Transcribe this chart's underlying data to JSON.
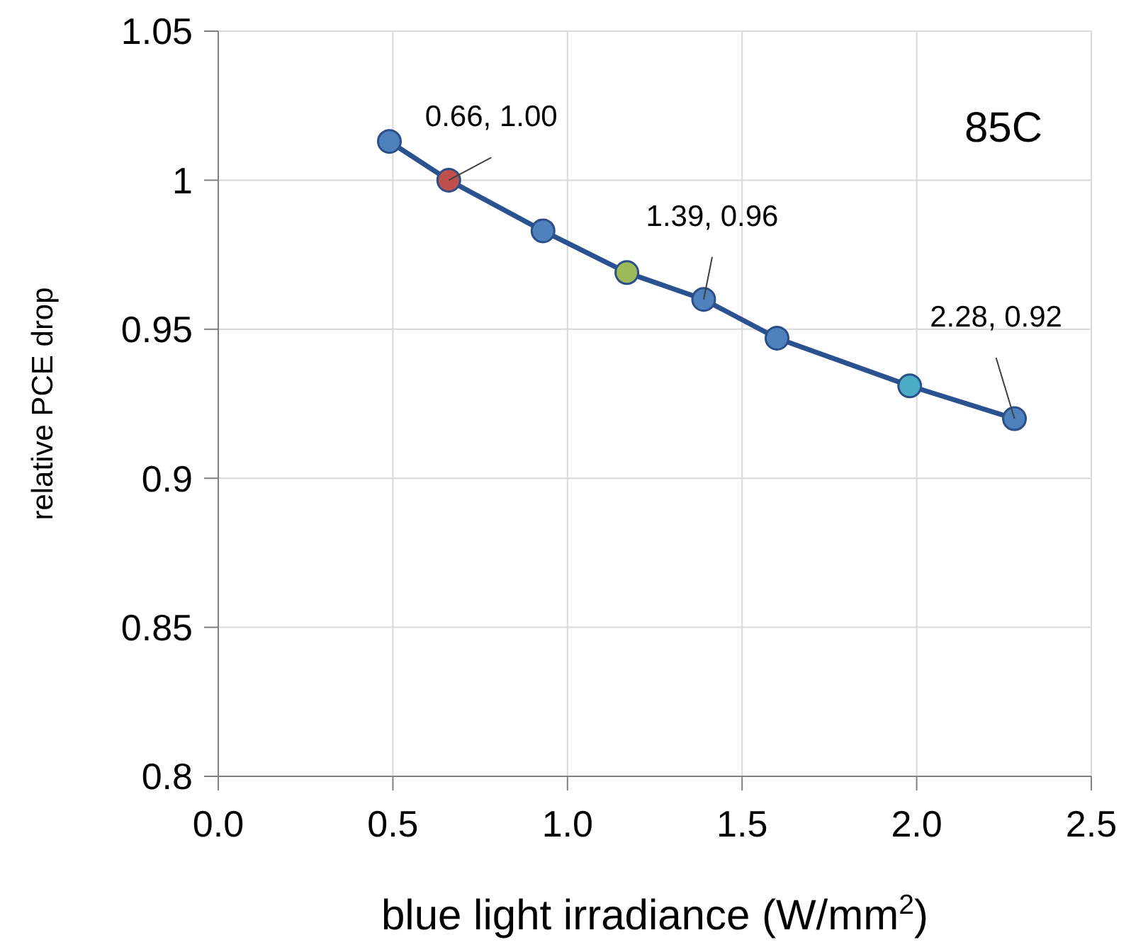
{
  "chart_data": {
    "type": "line",
    "xlabel": "blue light irradiance (W/mm$^{2}$)",
    "ylabel": "relative PCE drop",
    "x": [
      0.49,
      0.66,
      0.93,
      1.17,
      1.39,
      1.6,
      1.98,
      2.28
    ],
    "series": [
      {
        "color": "#2a5290",
        "values": [
          1.013,
          1.0,
          0.983,
          0.969,
          0.96,
          0.947,
          0.931,
          0.92
        ],
        "colors": [
          "#4f81bd",
          "#c0504d",
          "#4f81bd",
          "#9bbb59",
          "#4f81bd",
          "#4f81bd",
          "#4bacc6",
          "#4f81bd"
        ]
      }
    ],
    "xlim": [
      0,
      2.5
    ],
    "xticks": [
      {
        "value": 0,
        "label": "0.0"
      },
      {
        "value": 0.5,
        "label": "0.5"
      },
      {
        "value": 1,
        "label": "1.0"
      },
      {
        "value": 1.5,
        "label": "1.5"
      },
      {
        "value": 2,
        "label": "2.0"
      },
      {
        "value": 2.5,
        "label": "2.5"
      }
    ],
    "ylim": [
      0.8,
      1.05
    ],
    "yticks": [
      0.8,
      0.85,
      0.9,
      0.95,
      1,
      1.05
    ],
    "annotations": [
      {
        "text": "0.66, 1.00",
        "x": 0.66,
        "y": 1.0
      },
      {
        "text": "1.39, 0.96",
        "x": 1.39,
        "y": 0.96
      },
      {
        "text": "2.28, 0.92",
        "x": 2.28,
        "y": 0.92
      },
      "85C"
    ],
    "grid": true,
    "marker": "circle",
    "line_style": "solid",
    "legend": false
  }
}
